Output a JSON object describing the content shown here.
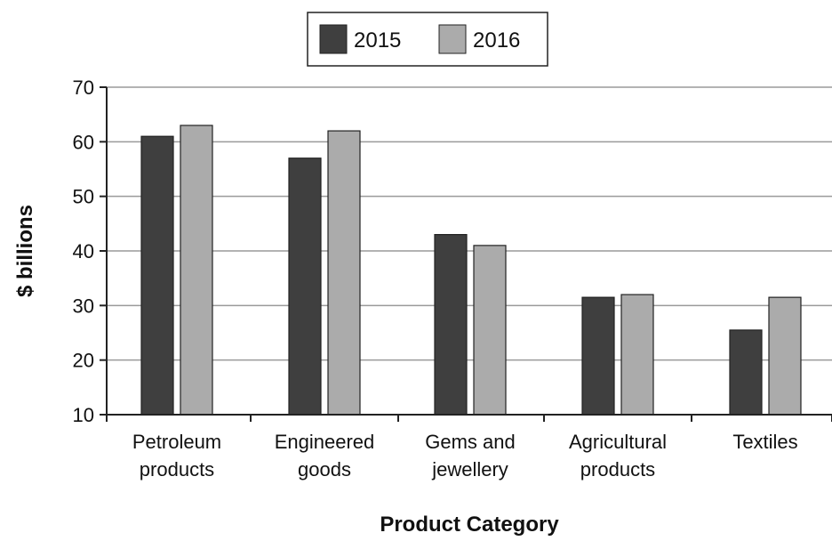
{
  "chart_data": {
    "type": "bar",
    "xlabel": "Product Category",
    "ylabel": "$ billions",
    "ylim": [
      10,
      70
    ],
    "yticks": [
      10,
      20,
      30,
      40,
      50,
      60,
      70
    ],
    "grid": "horizontal",
    "legend_position": "top-center",
    "categories": [
      [
        "Petroleum",
        "products"
      ],
      [
        "Engineered",
        "goods"
      ],
      [
        "Gems and",
        "jewellery"
      ],
      [
        "Agricultural",
        "products"
      ],
      [
        "Textiles"
      ]
    ],
    "series": [
      {
        "name": "2015",
        "color": "#3f3f3f",
        "values": [
          61,
          57,
          43,
          31.5,
          25.5
        ]
      },
      {
        "name": "2016",
        "color": "#ababab",
        "values": [
          63,
          62,
          41,
          32,
          31.5
        ]
      }
    ]
  }
}
